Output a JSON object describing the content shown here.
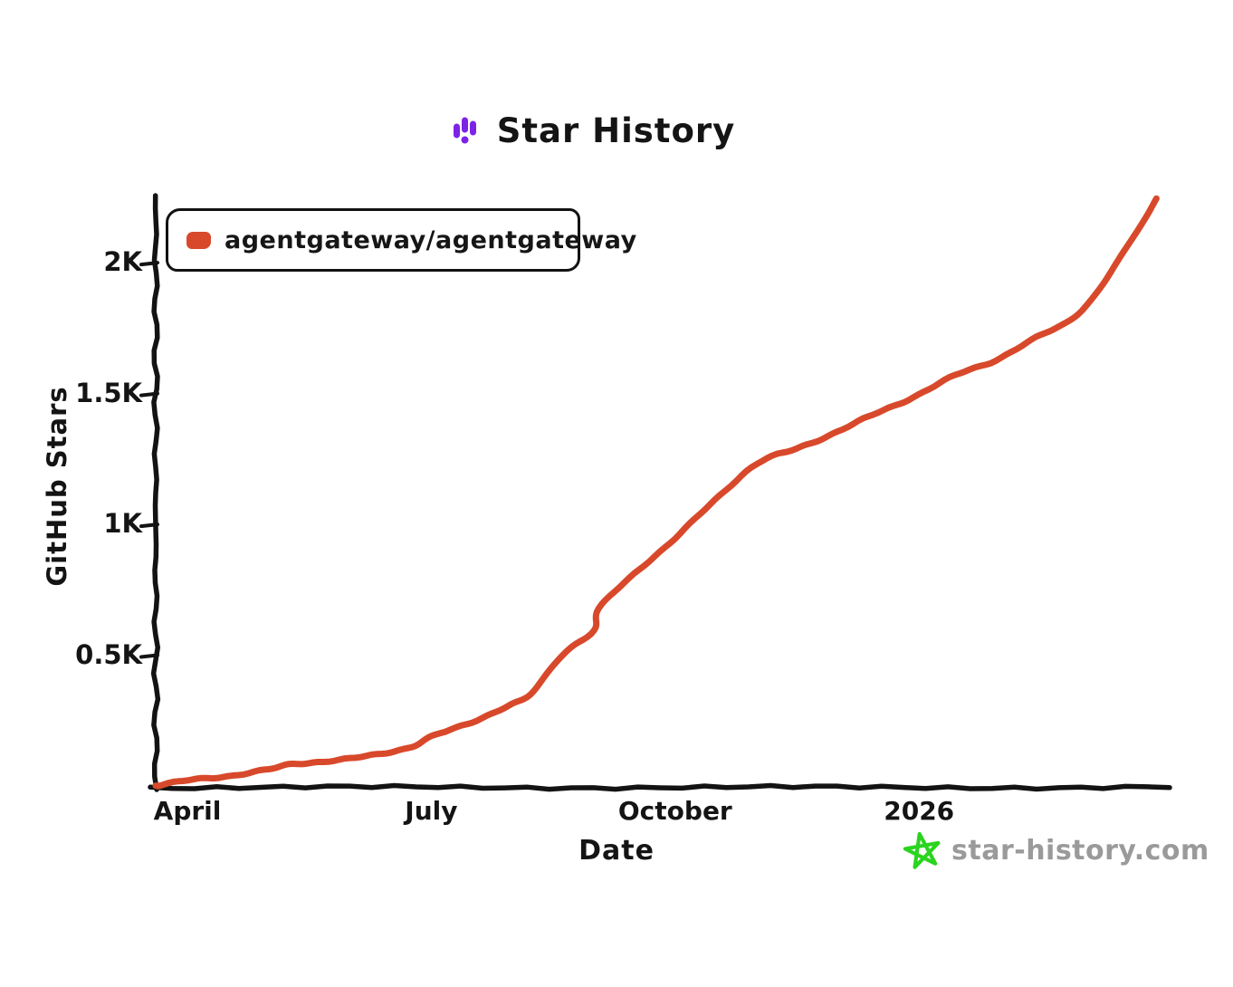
{
  "title": {
    "text": "Star History",
    "icon": "star-history-logo-icon",
    "icon_color": "#7d23e6"
  },
  "legend": {
    "series_label": "agentgateway/agentgateway",
    "swatch_color": "#d8492b"
  },
  "axes": {
    "y_label": "GitHub Stars",
    "x_label": "Date"
  },
  "watermark": {
    "text": "star-history.com",
    "star_color": "#2bd41f",
    "text_color": "#9a9a9a"
  },
  "chart_data": {
    "type": "line",
    "title": "Star History",
    "xlabel": "Date",
    "ylabel": "GitHub Stars",
    "grid": false,
    "legend_position": "top-left",
    "x_range_months": [
      0.61,
      13.06
    ],
    "y_range": [
      0,
      2253
    ],
    "x_ticks": [
      {
        "label": "April",
        "m": 1
      },
      {
        "label": "July",
        "m": 4
      },
      {
        "label": "October",
        "m": 7
      },
      {
        "label": "2026",
        "m": 10
      }
    ],
    "y_ticks": [
      {
        "label": "0.5K",
        "value": 500
      },
      {
        "label": "1K",
        "value": 1000
      },
      {
        "label": "1.5K",
        "value": 1500
      },
      {
        "label": "2K",
        "value": 2000
      }
    ],
    "series": [
      {
        "name": "agentgateway/agentgateway",
        "color": "#d8492b",
        "points": [
          {
            "date": "2025-03-19",
            "m": 0.61,
            "stars": 5
          },
          {
            "date": "2025-04-01",
            "m": 1.0,
            "stars": 24
          },
          {
            "date": "2025-04-16",
            "m": 1.5,
            "stars": 42
          },
          {
            "date": "2025-05-01",
            "m": 2.0,
            "stars": 66
          },
          {
            "date": "2025-05-09",
            "m": 2.28,
            "stars": 87
          },
          {
            "date": "2025-05-16",
            "m": 2.5,
            "stars": 93
          },
          {
            "date": "2025-06-01",
            "m": 3.0,
            "stars": 107
          },
          {
            "date": "2025-06-16",
            "m": 3.5,
            "stars": 135
          },
          {
            "date": "2025-06-24",
            "m": 3.78,
            "stars": 156
          },
          {
            "date": "2025-07-01",
            "m": 4.0,
            "stars": 190
          },
          {
            "date": "2025-07-16",
            "m": 4.5,
            "stars": 249
          },
          {
            "date": "2025-07-29",
            "m": 4.94,
            "stars": 308
          },
          {
            "date": "2025-08-07",
            "m": 5.22,
            "stars": 353
          },
          {
            "date": "2025-08-19",
            "m": 5.61,
            "stars": 506
          },
          {
            "date": "2025-09-01",
            "m": 6.0,
            "stars": 596
          },
          {
            "date": "2025-09-03",
            "m": 6.06,
            "stars": 679
          },
          {
            "date": "2025-09-16",
            "m": 6.5,
            "stars": 817
          },
          {
            "date": "2025-10-01",
            "m": 7.0,
            "stars": 949
          },
          {
            "date": "2025-10-16",
            "m": 7.5,
            "stars": 1101
          },
          {
            "date": "2025-11-01",
            "m": 8.0,
            "stars": 1233
          },
          {
            "date": "2025-11-16",
            "m": 8.5,
            "stars": 1295
          },
          {
            "date": "2025-12-01",
            "m": 9.0,
            "stars": 1357
          },
          {
            "date": "2025-12-16",
            "m": 9.5,
            "stars": 1433
          },
          {
            "date": "2026-01-01",
            "m": 10.0,
            "stars": 1499
          },
          {
            "date": "2026-01-16",
            "m": 10.5,
            "stars": 1582
          },
          {
            "date": "2026-02-01",
            "m": 11.0,
            "stars": 1638
          },
          {
            "date": "2026-02-16",
            "m": 11.5,
            "stars": 1728
          },
          {
            "date": "2026-02-26",
            "m": 11.83,
            "stars": 1780
          },
          {
            "date": "2026-03-04",
            "m": 12.11,
            "stars": 1856
          },
          {
            "date": "2026-03-12",
            "m": 12.39,
            "stars": 1981
          },
          {
            "date": "2026-03-19",
            "m": 12.63,
            "stars": 2102
          },
          {
            "date": "2026-03-25",
            "m": 12.81,
            "stars": 2188
          },
          {
            "date": "2026-03-28",
            "m": 12.92,
            "stars": 2251
          }
        ]
      }
    ]
  }
}
